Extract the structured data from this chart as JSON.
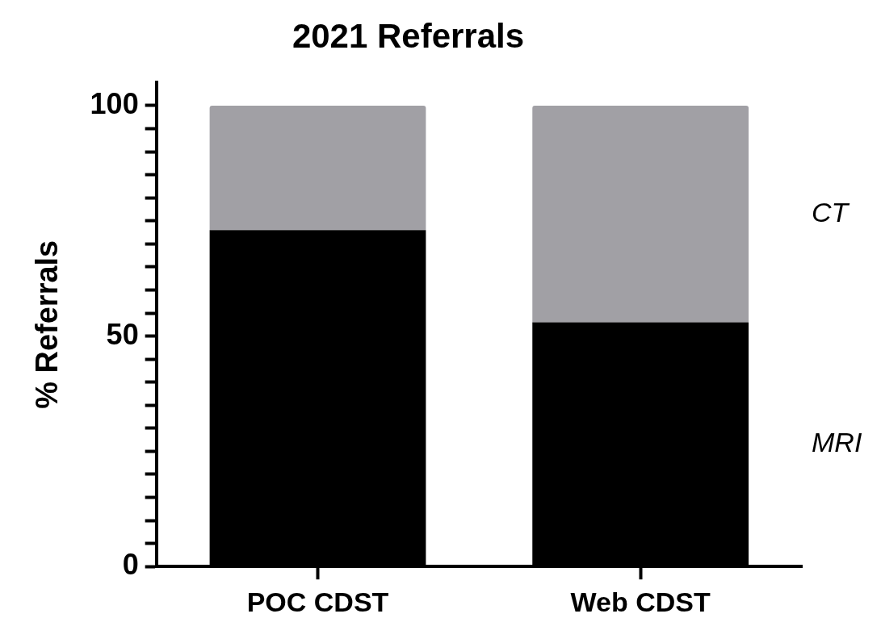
{
  "chart_data": {
    "type": "bar",
    "title": "2021 Referrals",
    "ylabel": "% Referrals",
    "categories": [
      "POC CDST",
      "Web CDST"
    ],
    "stacked": true,
    "series": [
      {
        "name": "MRI",
        "color": "#000000",
        "values": [
          73,
          53
        ]
      },
      {
        "name": "CT",
        "color": "#a1a0a5",
        "values": [
          27,
          47
        ]
      }
    ],
    "ylim": [
      0,
      105
    ],
    "yticks": [
      0,
      {
        "value": 5,
        "label": null
      },
      {
        "value": 10,
        "label": null
      },
      {
        "value": 15,
        "label": null
      },
      {
        "value": 20,
        "label": null
      },
      {
        "value": 25,
        "label": null
      },
      {
        "value": 30,
        "label": null
      },
      {
        "value": 35,
        "label": null
      },
      {
        "value": 40,
        "label": null
      },
      {
        "value": 45,
        "label": null
      },
      50,
      {
        "value": 55,
        "label": null
      },
      {
        "value": 60,
        "label": null
      },
      {
        "value": 65,
        "label": null
      },
      {
        "value": 70,
        "label": null
      },
      {
        "value": 75,
        "label": null
      },
      {
        "value": 80,
        "label": null
      },
      {
        "value": 85,
        "label": null
      },
      {
        "value": 90,
        "label": null
      },
      {
        "value": 95,
        "label": null
      },
      100
    ],
    "grid": false,
    "legend": false
  }
}
